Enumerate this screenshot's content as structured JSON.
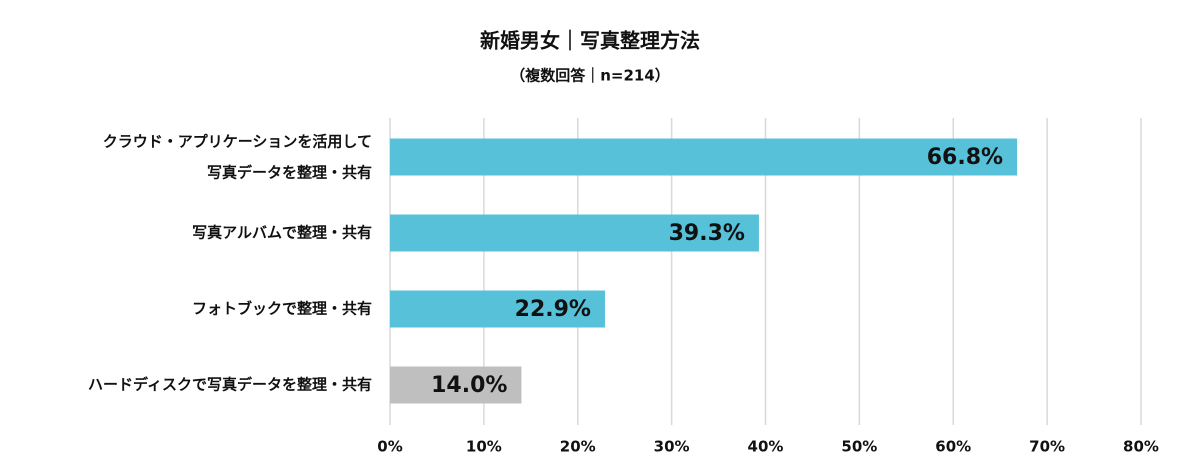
{
  "chart_data": {
    "type": "hbar",
    "title": "新婚男女｜写真整理方法",
    "subtitle": "（複数回答｜n=214）",
    "categories": [
      "クラウド・アプリケーションを活用して\n写真データを整理・共有",
      "写真アルバムで整理・共有",
      "フォトブックで整理・共有",
      "ハードディスクで写真データを整理・共有"
    ],
    "values": [
      66.8,
      39.3,
      22.9,
      14.0
    ],
    "value_labels": [
      "66.8%",
      "39.3%",
      "22.9%",
      "14.0%"
    ],
    "colors": [
      "#56c1d9",
      "#56c1d9",
      "#56c1d9",
      "#bfbfbf"
    ],
    "xlim": [
      0,
      80
    ],
    "xticks": [
      {
        "value": 0,
        "label": "0%"
      },
      {
        "value": 10,
        "label": "10%"
      },
      {
        "value": 20,
        "label": "20%"
      },
      {
        "value": 30,
        "label": "30%"
      },
      {
        "value": 40,
        "label": "40%"
      },
      {
        "value": 50,
        "label": "50%"
      },
      {
        "value": 60,
        "label": "60%"
      },
      {
        "value": 70,
        "label": "70%"
      },
      {
        "value": 80,
        "label": "80%"
      }
    ],
    "grid": true
  }
}
